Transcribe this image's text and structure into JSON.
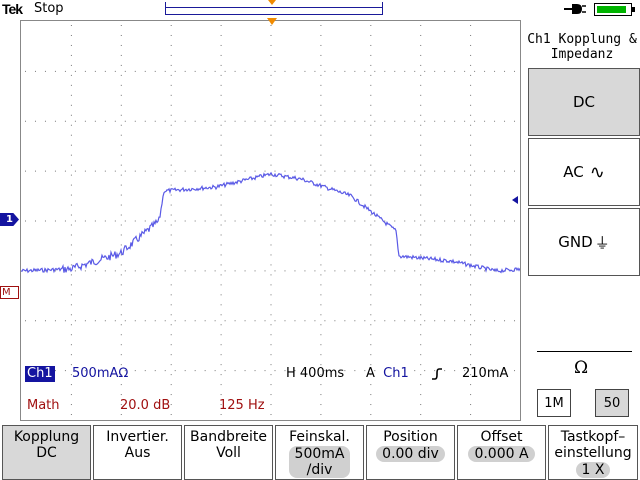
{
  "status": {
    "brand": "Tek",
    "run_state": "Stop",
    "power_icon": "ac-power-plug-icon",
    "battery_icon": "battery-icon",
    "battery_level": 0.9,
    "battery_color": "#00b400"
  },
  "readouts": {
    "ch1_label": "Ch1",
    "ch1_scale": "500mAΩ",
    "horizontal": "H 400ms",
    "trigger_mode": "A",
    "trigger_source": "Ch1",
    "trigger_edge_icon": "rising-edge-icon",
    "trigger_level": "210mA",
    "math_label": "Math",
    "math_scale": "20.0 dB",
    "math_freq": "125 Hz"
  },
  "markers": {
    "ch1": "1",
    "math": "M"
  },
  "side_menu": {
    "title": "Ch1 Kopplung & Impedanz",
    "options": [
      {
        "label": "DC",
        "symbol": "",
        "icon": "",
        "selected": true
      },
      {
        "label": "AC",
        "symbol": "∿",
        "icon": "ac-sine-icon",
        "selected": false
      },
      {
        "label": "GND",
        "symbol": "⏚",
        "icon": "ground-icon",
        "selected": false
      }
    ],
    "impedance_label": "Ω",
    "impedance_options": [
      {
        "label": "1M",
        "selected": false
      },
      {
        "label": "50",
        "selected": true
      }
    ]
  },
  "soft_keys": [
    {
      "title": "Kopplung",
      "value": "DC",
      "pill": false,
      "selected": true
    },
    {
      "title": "Invertier.",
      "value": "Aus",
      "pill": false,
      "selected": false
    },
    {
      "title": "Bandbreite",
      "value": "Voll",
      "pill": false,
      "selected": false
    },
    {
      "title": "Feinskal.",
      "value": "500mA",
      "value2": "/div",
      "pill": true,
      "selected": false
    },
    {
      "title": "Position",
      "value": "0.00 div",
      "pill": true,
      "selected": false
    },
    {
      "title": "Offset",
      "value": "0.000 A",
      "pill": true,
      "selected": false
    },
    {
      "title": "Tastkopf–",
      "title2": "einstellung",
      "value": "1 X",
      "pill": true,
      "selected": false
    }
  ],
  "colors": {
    "trace": "#5a5ae6",
    "ch1": "#1414a0",
    "math": "#a01010",
    "trigger_marker": "#f08a00"
  }
}
